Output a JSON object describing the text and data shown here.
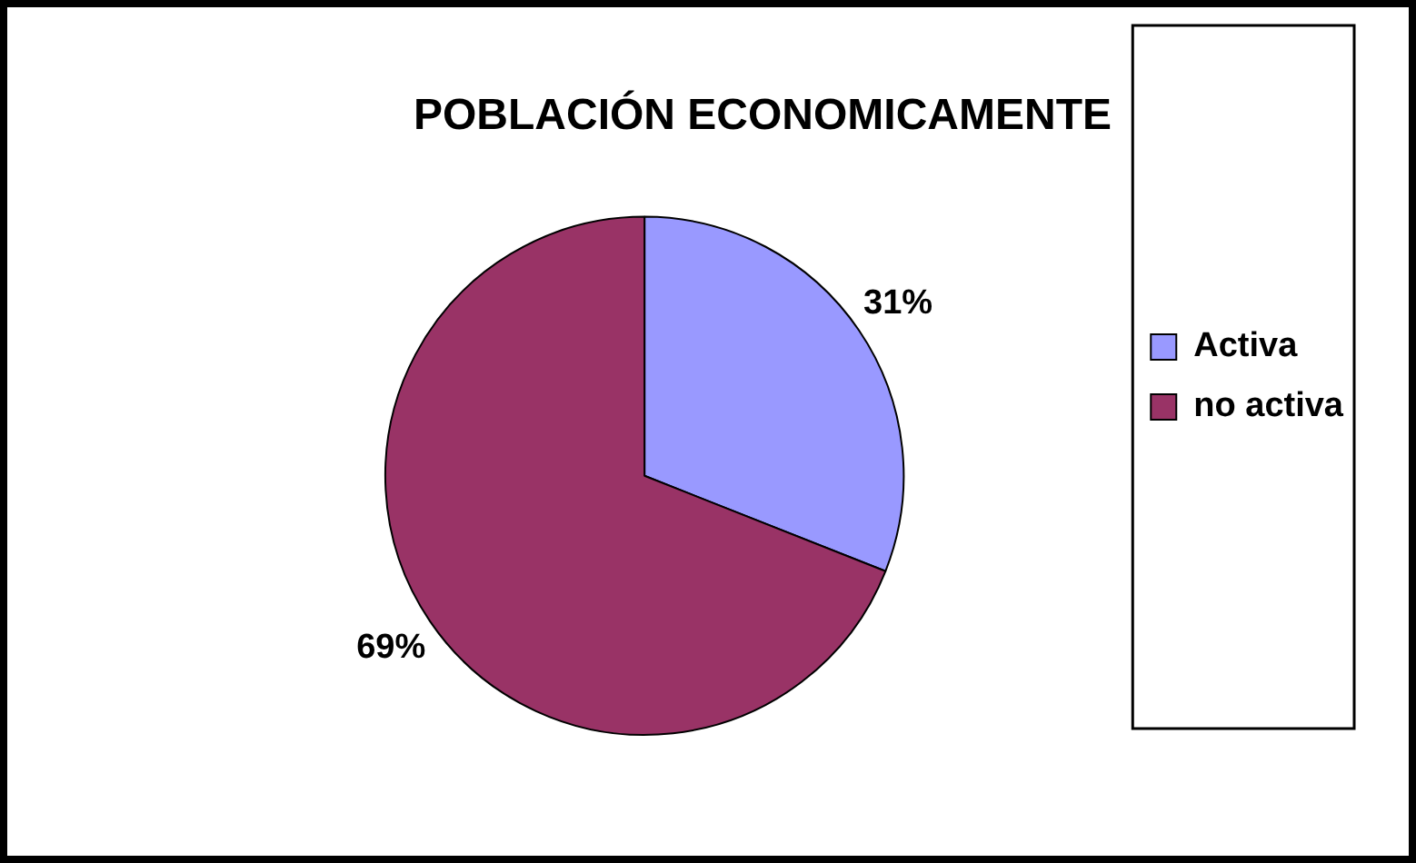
{
  "chart_data": {
    "type": "pie",
    "title": "POBLACIÓN ECONOMICAMENTE",
    "categories": [
      "Activa",
      "no activa"
    ],
    "values": [
      31,
      69
    ],
    "colors": [
      "#9999ff",
      "#993366"
    ],
    "value_labels": [
      "31%",
      "69%"
    ],
    "legend": "right"
  }
}
